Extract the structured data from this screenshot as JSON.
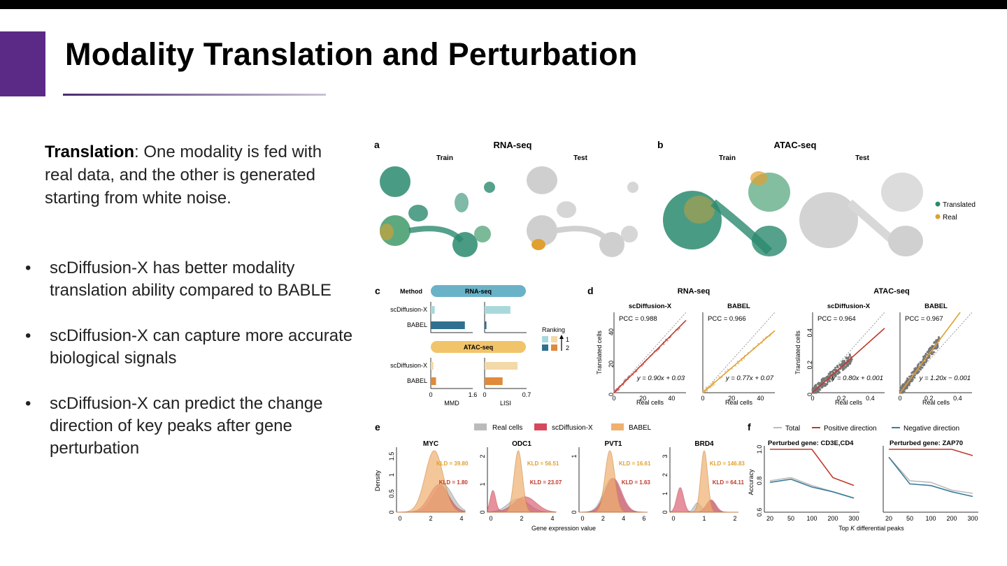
{
  "slide": {
    "title": "Modality Translation and Perturbation",
    "intro_bold": "Translation",
    "intro_rest": ": One modality is fed with real data, and the other is generated starting from white noise.",
    "bullets": [
      "scDiffusion-X has better modality translation ability compared to BABLE",
      "scDiffusion-X can capture more accurate biological signals",
      "scDiffusion-X can predict the change direction of key peaks after gene perturbation"
    ],
    "bullet_symbol": "•"
  },
  "colors": {
    "accent": "#5b2a86",
    "translated": "#2a8a6e",
    "real": "#e0a030",
    "teal": "#3a7d9a",
    "orange": "#e08a3c",
    "red": "#c0392b",
    "gray": "#bbbbbb"
  },
  "figure": {
    "a": {
      "letter": "a",
      "title": "RNA-seq",
      "train": "Train",
      "test": "Test"
    },
    "b": {
      "letter": "b",
      "title": "ATAC-seq",
      "train": "Train",
      "test": "Test"
    },
    "legend_ab": [
      "Translated",
      "Real"
    ],
    "c": {
      "letter": "c",
      "method": "Method",
      "rna_pill": "RNA-seq",
      "atac_pill": "ATAC-seq",
      "rows": [
        "scDiffusion-X",
        "BABEL"
      ],
      "xlabels": [
        "MMD",
        "LISI"
      ],
      "ticks_mmd": [
        "0",
        "1.6"
      ],
      "ticks_lisi": [
        "0",
        "0.7"
      ],
      "ranking": "Ranking",
      "rank1": "1",
      "rank2": "2"
    },
    "d": {
      "letter": "d",
      "rna": "RNA-seq",
      "atac": "ATAC-seq",
      "panels": [
        {
          "title": "scDiffusion-X",
          "pcc": "PCC = 0.988",
          "eq": "y = 0.90x + 0.03"
        },
        {
          "title": "BABEL",
          "pcc": "PCC = 0.966",
          "eq": "y = 0.77x + 0.07"
        },
        {
          "title": "scDiffusion-X",
          "pcc": "PCC = 0.964",
          "eq": "y = 0.80x + 0.001"
        },
        {
          "title": "BABEL",
          "pcc": "PCC = 0.967",
          "eq": "y = 1.20x − 0.001"
        }
      ],
      "ylabel": "Translated cells",
      "xlabel": "Real cells",
      "rna_ticks_x": [
        "0",
        "20",
        "40"
      ],
      "rna_ticks_y": [
        "0",
        "20",
        "40"
      ],
      "atac_ticks_x": [
        "0",
        "0.2",
        "0.4"
      ],
      "atac_ticks_y": [
        "0",
        "0.2",
        "0.4"
      ]
    },
    "e": {
      "letter": "e",
      "legend": [
        "Real cells",
        "scDiffusion-X",
        "BABEL"
      ],
      "ylabel": "Density",
      "xlabel": "Gene expression value",
      "genes": [
        {
          "name": "MYC",
          "kld_babel": "KLD = 39.80",
          "kld_sc": "KLD = 1.80",
          "xticks": [
            "0",
            "2",
            "4"
          ],
          "yticks": [
            "0",
            "0.5",
            "1",
            "1.5"
          ]
        },
        {
          "name": "ODC1",
          "kld_babel": "KLD = 56.51",
          "kld_sc": "KLD = 23.07",
          "xticks": [
            "0",
            "2",
            "4"
          ],
          "yticks": [
            "0",
            "1",
            "2"
          ]
        },
        {
          "name": "PVT1",
          "kld_babel": "KLD = 16.61",
          "kld_sc": "KLD = 1.63",
          "xticks": [
            "0",
            "2",
            "4",
            "6"
          ],
          "yticks": [
            "0",
            "1"
          ]
        },
        {
          "name": "BRD4",
          "kld_babel": "KLD = 146.83",
          "kld_sc": "KLD = 64.11",
          "xticks": [
            "0",
            "1",
            "2"
          ],
          "yticks": [
            "0",
            "1",
            "2",
            "3"
          ]
        }
      ]
    },
    "f": {
      "letter": "f",
      "legend": [
        "Total",
        "Positive direction",
        "Negative direction"
      ],
      "panel1": "Perturbed gene: CD3E,CD4",
      "panel2": "Perturbed gene: ZAP70",
      "ylabel": "Accuracy",
      "xlabel_pre": "Top ",
      "xlabel_k": "K",
      "xlabel_post": " differential peaks",
      "xticks": [
        "20",
        "50",
        "100",
        "200",
        "300"
      ],
      "yticks": [
        "0.6",
        "0.8",
        "1.0"
      ]
    }
  },
  "chart_data": [
    {
      "type": "bar",
      "title": "RNA-seq",
      "categories": [
        "scDiffusion-X",
        "BABEL"
      ],
      "series": [
        {
          "name": "MMD",
          "values": [
            0.15,
            1.3
          ]
        },
        {
          "name": "LISI",
          "values": [
            0.43,
            0.03
          ]
        }
      ]
    },
    {
      "type": "bar",
      "title": "ATAC-seq",
      "categories": [
        "scDiffusion-X",
        "BABEL"
      ],
      "series": [
        {
          "name": "MMD",
          "values": [
            0.1,
            0.2
          ]
        },
        {
          "name": "LISI",
          "values": [
            0.55,
            0.3
          ]
        }
      ]
    },
    {
      "type": "line",
      "title": "Perturbed gene: CD3E,CD4",
      "x": [
        20,
        50,
        100,
        200,
        300
      ],
      "ylim": [
        0.6,
        1.0
      ],
      "series": [
        {
          "name": "Total",
          "values": [
            0.8,
            0.82,
            0.77,
            0.73,
            0.69
          ]
        },
        {
          "name": "Positive direction",
          "values": [
            1.0,
            1.0,
            1.0,
            0.82,
            0.77
          ]
        },
        {
          "name": "Negative direction",
          "values": [
            0.79,
            0.81,
            0.76,
            0.73,
            0.69
          ]
        }
      ]
    },
    {
      "type": "line",
      "title": "Perturbed gene: ZAP70",
      "x": [
        20,
        50,
        100,
        200,
        300
      ],
      "ylim": [
        0.6,
        1.0
      ],
      "series": [
        {
          "name": "Total",
          "values": [
            0.95,
            0.8,
            0.79,
            0.74,
            0.72
          ]
        },
        {
          "name": "Positive direction",
          "values": [
            1.0,
            1.0,
            1.0,
            1.0,
            0.96
          ]
        },
        {
          "name": "Negative direction",
          "values": [
            0.95,
            0.78,
            0.77,
            0.73,
            0.7
          ]
        }
      ]
    }
  ]
}
